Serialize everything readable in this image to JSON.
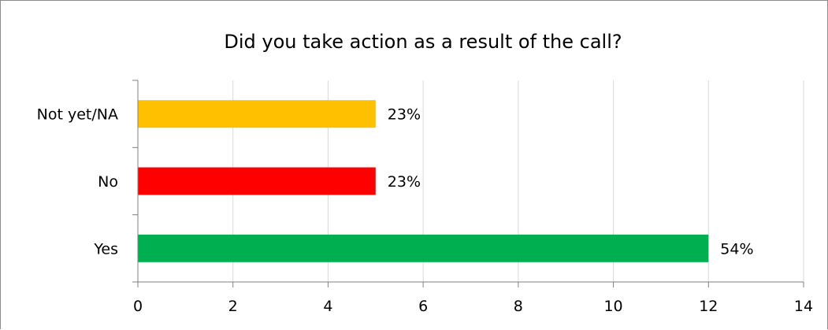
{
  "chart_data": {
    "type": "bar",
    "orientation": "horizontal",
    "title": "Did you take action as a result of the call?",
    "xlabel": "",
    "ylabel": "",
    "categories": [
      "Not yet/NA",
      "No",
      "Yes"
    ],
    "values": [
      5,
      5,
      12
    ],
    "data_labels": [
      "23%",
      "23%",
      "54%"
    ],
    "colors": [
      "#FFC000",
      "#FF0000",
      "#00B050"
    ],
    "xlim": [
      0,
      14
    ],
    "xticks": [
      0,
      2,
      4,
      6,
      8,
      10,
      12,
      14
    ],
    "grid": true,
    "legend": "none"
  }
}
